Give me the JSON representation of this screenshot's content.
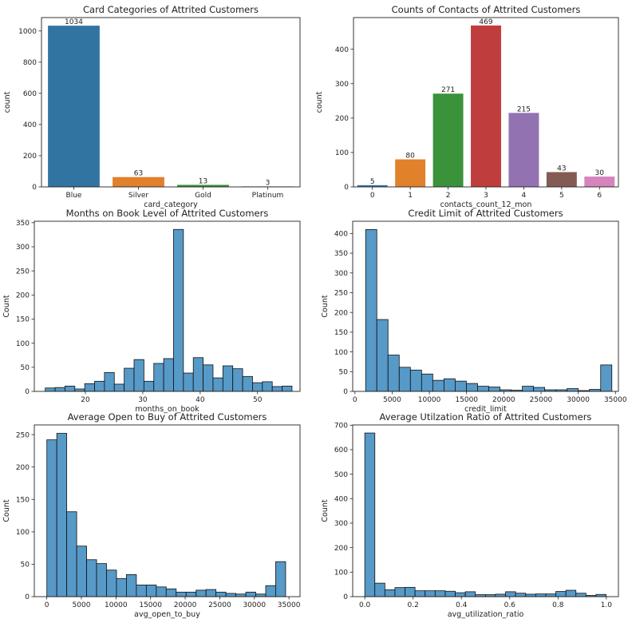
{
  "colors": {
    "hist_fill": "#5799c7",
    "hist_edge": "#111111",
    "palette": [
      "#3274a1",
      "#e1812c",
      "#3a923a",
      "#c03d3e",
      "#9372b2",
      "#845b53",
      "#d684bd"
    ]
  },
  "chart_data": [
    {
      "type": "bar",
      "title": "Card Categories of Attrited Customers",
      "xlabel": "card_category",
      "ylabel": "count",
      "categories": [
        "Blue",
        "Silver",
        "Gold",
        "Platinum"
      ],
      "values": [
        1034,
        63,
        13,
        3
      ],
      "data_labels": [
        "1034",
        "63",
        "13",
        "3"
      ],
      "ylim": [
        0,
        1086
      ],
      "yticks": [
        0,
        200,
        400,
        600,
        800,
        1000
      ],
      "grid": false
    },
    {
      "type": "bar",
      "title": "Counts of Contacts of Attrited Customers",
      "xlabel": "contacts_count_12_mon",
      "ylabel": "count",
      "categories": [
        "0",
        "1",
        "2",
        "3",
        "4",
        "5",
        "6"
      ],
      "values": [
        5,
        80,
        271,
        469,
        215,
        43,
        30
      ],
      "data_labels": [
        "5",
        "80",
        "271",
        "469",
        "215",
        "43",
        "30"
      ],
      "ylim": [
        0,
        492
      ],
      "yticks": [
        0,
        100,
        200,
        300,
        400
      ],
      "grid": false
    },
    {
      "type": "histogram",
      "title": "Months on Book Level of Attrited Customers",
      "xlabel": "months_on_book",
      "ylabel": "Count",
      "bin_range": [
        13,
        56
      ],
      "counts": [
        7,
        8,
        11,
        5,
        16,
        21,
        39,
        15,
        48,
        66,
        21,
        58,
        68,
        336,
        38,
        70,
        55,
        28,
        53,
        47,
        31,
        18,
        20,
        10,
        11
      ],
      "xlim": [
        11.1,
        57.4
      ],
      "ylim": [
        0,
        353
      ],
      "xticks": [
        20,
        30,
        40,
        50
      ],
      "yticks": [
        0,
        50,
        100,
        150,
        200,
        250,
        300,
        350
      ],
      "grid": false
    },
    {
      "type": "histogram",
      "title": "Credit Limit of Attrited Customers",
      "xlabel": "credit_limit",
      "ylabel": "Count",
      "bin_range": [
        1438,
        34516
      ],
      "counts": [
        410,
        182,
        92,
        61,
        54,
        44,
        28,
        32,
        26,
        20,
        13,
        11,
        4,
        3,
        13,
        10,
        4,
        4,
        7,
        2,
        5,
        67
      ],
      "xlim": [
        -300,
        35400
      ],
      "ylim": [
        0,
        431
      ],
      "xticks": [
        0,
        5000,
        10000,
        15000,
        20000,
        25000,
        30000,
        35000
      ],
      "yticks": [
        0,
        50,
        100,
        150,
        200,
        250,
        300,
        350,
        400
      ],
      "grid": false
    },
    {
      "type": "histogram",
      "title": "Average Open to Buy of Attrited Customers",
      "xlabel": "avg_open_to_buy",
      "ylabel": "Count",
      "bin_range": [
        10,
        34516
      ],
      "counts": [
        242,
        252,
        131,
        78,
        57,
        51,
        41,
        28,
        34,
        18,
        18,
        15,
        12,
        7,
        7,
        10,
        11,
        7,
        5,
        4,
        7,
        4,
        17,
        54
      ],
      "xlim": [
        -1800,
        36600
      ],
      "ylim": [
        0,
        265
      ],
      "xticks": [
        0,
        5000,
        10000,
        15000,
        20000,
        25000,
        30000,
        35000
      ],
      "yticks": [
        0,
        50,
        100,
        150,
        200,
        250
      ],
      "grid": false
    },
    {
      "type": "histogram",
      "title": "Average Utilzation Ratio of Attrited Customers",
      "xlabel": "avg_utilization_ratio",
      "ylabel": "Count",
      "bin_range": [
        0,
        0.999
      ],
      "counts": [
        668,
        55,
        28,
        37,
        38,
        24,
        24,
        24,
        22,
        16,
        20,
        8,
        8,
        10,
        20,
        14,
        10,
        11,
        11,
        21,
        26,
        14,
        5,
        9
      ],
      "xlim": [
        -0.05,
        1.05
      ],
      "ylim": [
        0,
        701
      ],
      "xticks": [
        0.0,
        0.2,
        0.4,
        0.6,
        0.8,
        1.0
      ],
      "xtick_labels": [
        "0.0",
        "0.2",
        "0.4",
        "0.6",
        "0.8",
        "1.0"
      ],
      "yticks": [
        0,
        100,
        200,
        300,
        400,
        500,
        600,
        700
      ],
      "grid": false
    }
  ]
}
